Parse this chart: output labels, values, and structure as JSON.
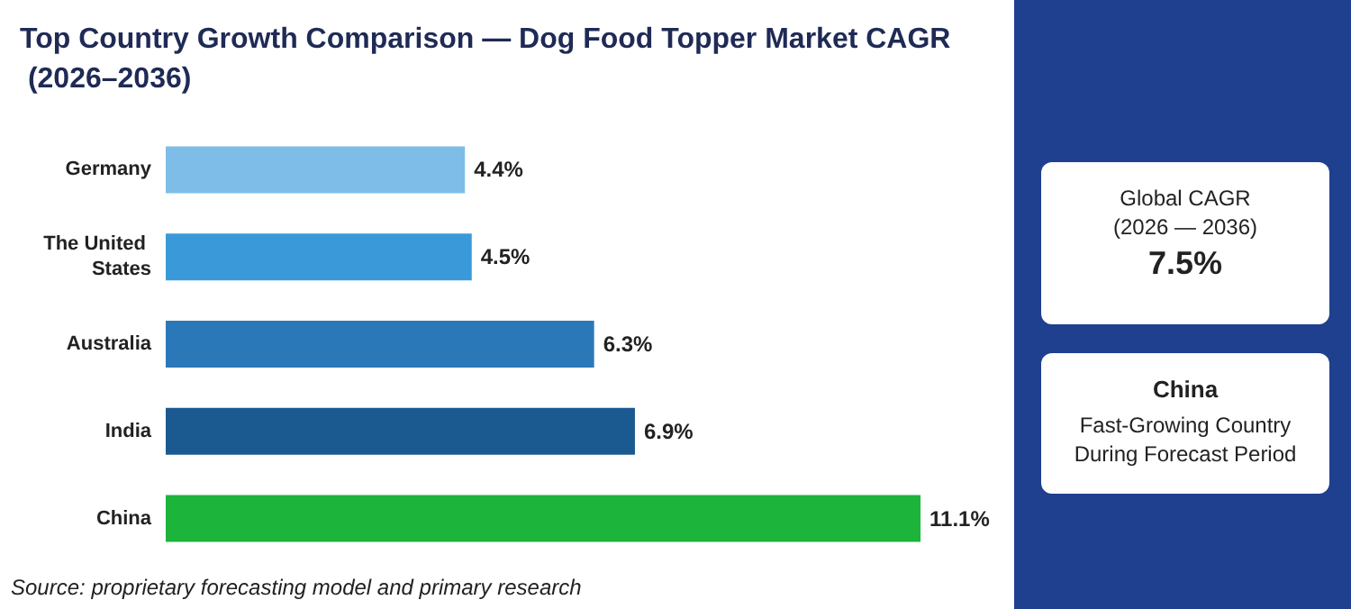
{
  "chart_data": {
    "type": "bar",
    "orientation": "horizontal",
    "title": "Top Country Growth Comparison — Dog Food Topper Market CAGR (2026–2036)",
    "categories": [
      "Germany",
      "The United States",
      "Australia",
      "India",
      "China"
    ],
    "values": [
      4.4,
      4.5,
      6.3,
      6.9,
      11.1
    ],
    "colors": [
      "#7dbde8",
      "#3a9ad9",
      "#2a78b8",
      "#1a5a90",
      "#1db43c"
    ],
    "value_labels": [
      "4.4%",
      "4.5%",
      "6.3%",
      "6.9%",
      "11.1%"
    ],
    "annotations": [
      "Global CAGR",
      "(2026 — 2036)",
      "7.5%",
      "China",
      "Fast-Growing Country",
      "During Forecast Period",
      "Source: proprietary forecasting model and primary research"
    ]
  }
}
